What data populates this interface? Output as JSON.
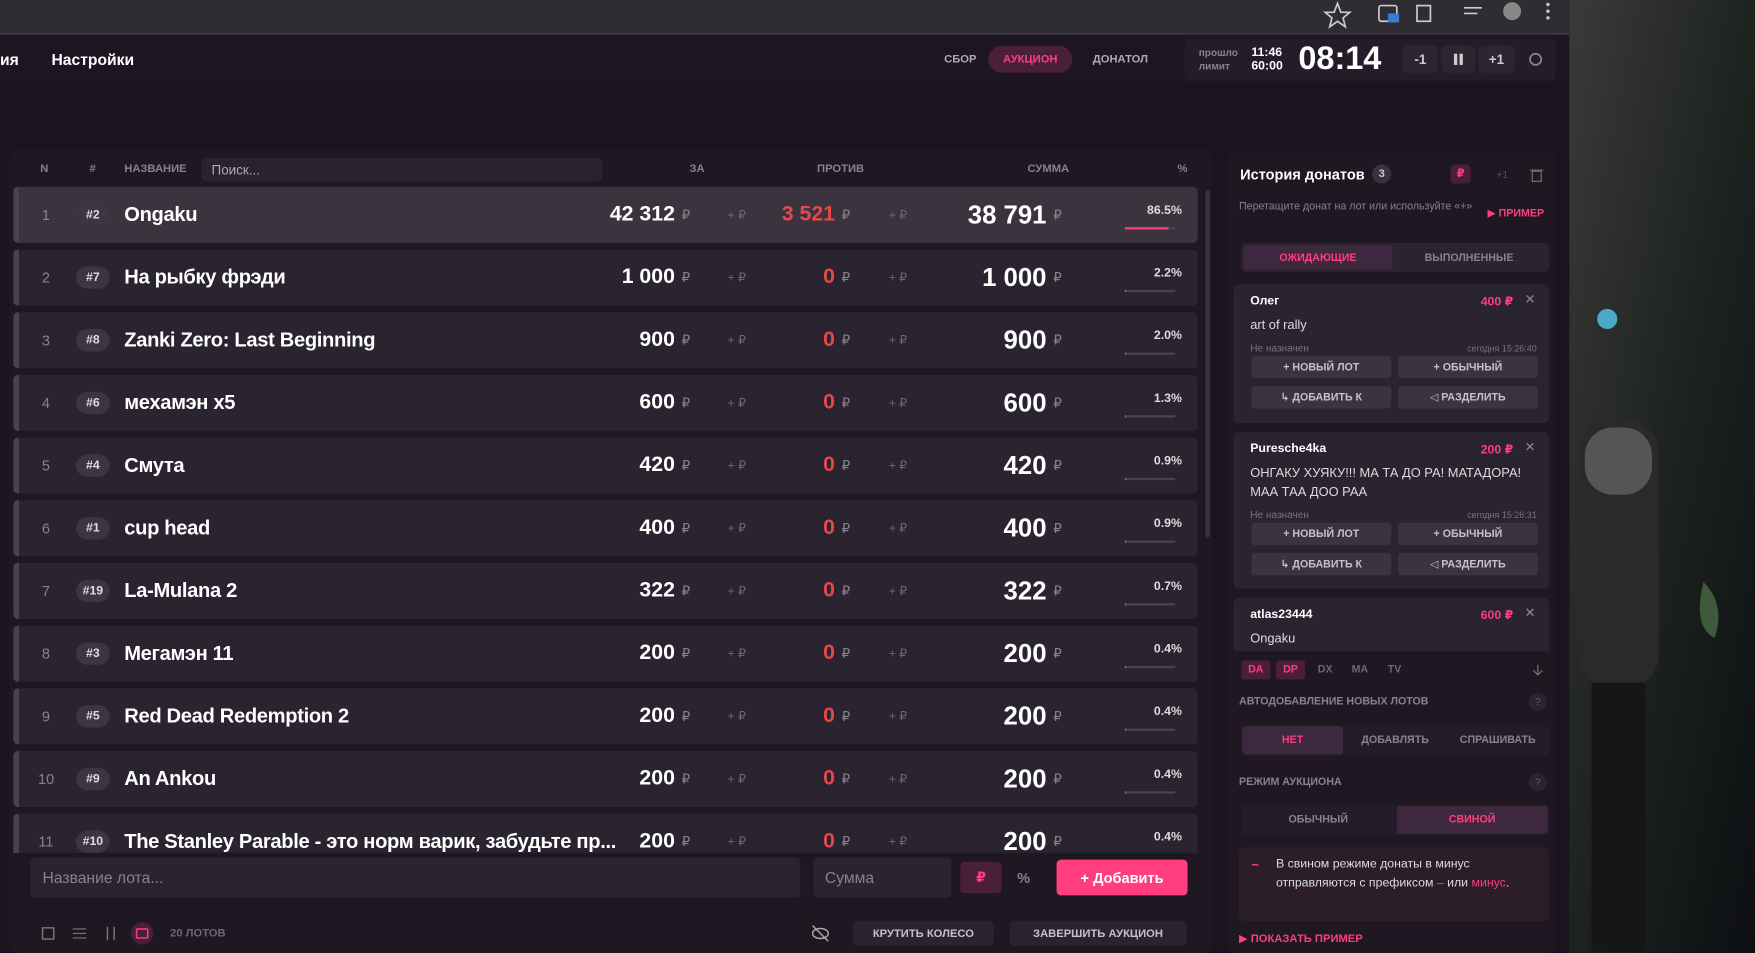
{
  "header": {
    "nav": [
      "ия",
      "Настройки"
    ],
    "tabs": [
      {
        "label": "СБОР"
      },
      {
        "label": "АУКЦИОН",
        "active": true
      },
      {
        "label": "ДОНАТОЛ"
      }
    ],
    "timer": {
      "elapsed_label": "прошло",
      "elapsed": "11:46",
      "limit_label": "лимит",
      "limit": "60:00",
      "remaining": "08:14",
      "minus": "-1",
      "plus": "+1"
    }
  },
  "table": {
    "columns": {
      "n": "N",
      "hash": "#",
      "name": "НАЗВАНИЕ",
      "search": "Поиск...",
      "za": "ЗА",
      "protiv": "ПРОТИВ",
      "sum": "СУММА",
      "pct": "%"
    },
    "currency": "₽",
    "add_currency": "+ ₽",
    "rows": [
      {
        "n": "1",
        "id": "#2",
        "name": "Ongaku",
        "za": "42 312",
        "protiv": "3 521",
        "sum": "38 791",
        "pct": "86.5%"
      },
      {
        "n": "2",
        "id": "#7",
        "name": "На рыбку фрэди",
        "za": "1 000",
        "protiv": "0",
        "sum": "1 000",
        "pct": "2.2%"
      },
      {
        "n": "3",
        "id": "#8",
        "name": "Zanki Zero: Last Beginning",
        "za": "900",
        "protiv": "0",
        "sum": "900",
        "pct": "2.0%"
      },
      {
        "n": "4",
        "id": "#6",
        "name": "мехамэн x5",
        "za": "600",
        "protiv": "0",
        "sum": "600",
        "pct": "1.3%"
      },
      {
        "n": "5",
        "id": "#4",
        "name": "Смута",
        "za": "420",
        "protiv": "0",
        "sum": "420",
        "pct": "0.9%"
      },
      {
        "n": "6",
        "id": "#1",
        "name": "cup head",
        "za": "400",
        "protiv": "0",
        "sum": "400",
        "pct": "0.9%"
      },
      {
        "n": "7",
        "id": "#19",
        "name": "La-Mulana 2",
        "za": "322",
        "protiv": "0",
        "sum": "322",
        "pct": "0.7%"
      },
      {
        "n": "8",
        "id": "#3",
        "name": "Мегамэн 11",
        "za": "200",
        "protiv": "0",
        "sum": "200",
        "pct": "0.4%"
      },
      {
        "n": "9",
        "id": "#5",
        "name": "Red Dead Redemption 2",
        "za": "200",
        "protiv": "0",
        "sum": "200",
        "pct": "0.4%"
      },
      {
        "n": "10",
        "id": "#9",
        "name": "An Ankou",
        "za": "200",
        "protiv": "0",
        "sum": "200",
        "pct": "0.4%"
      },
      {
        "n": "11",
        "id": "#10",
        "name": "The Stanley Parable - это норм варик, забудьте пр...",
        "za": "200",
        "protiv": "0",
        "sum": "200",
        "pct": "0.4%"
      }
    ],
    "add_form": {
      "name_placeholder": "Название лота...",
      "sum_placeholder": "Сумма",
      "percent": "%",
      "add": "+ Добавить"
    },
    "footer": {
      "count": "20 ЛОТОВ",
      "spin": "КРУТИТЬ КОЛЕСО",
      "finish": "ЗАВЕРШИТЬ АУКЦИОН"
    }
  },
  "donations": {
    "title": "История донатов",
    "count": "3",
    "badge_plus": "+1",
    "hint": "Перетащите донат на лот или используйте «+»",
    "example": "▶ ПРИМЕР",
    "tabs": [
      {
        "label": "ОЖИДАЮЩИЕ",
        "active": true
      },
      {
        "label": "ВЫПОЛНЕННЫЕ"
      }
    ],
    "actions": [
      "+ НОВЫЙ ЛОТ",
      "+ ОБЫЧНЫЙ",
      "↳ ДОБАВИТЬ К",
      "◁ РАЗДЕЛИТЬ"
    ],
    "items": [
      {
        "name": "Олег",
        "amount": "400 ₽",
        "message": "art of rally",
        "status": "Не назначен",
        "time": "сегодня 15:26:40"
      },
      {
        "name": "Puresche4ka",
        "amount": "200 ₽",
        "message": "ОНГАКУ ХУЯКУ!!! МА ТА ДО РА! МАТАДОРА! МАА ТАА ДОО РАА",
        "status": "Не назначен",
        "time": "сегодня 15:26:31"
      },
      {
        "name": "atlas23444",
        "amount": "600 ₽",
        "message": "Ongaku"
      }
    ],
    "sources": [
      {
        "label": "DA",
        "active": true
      },
      {
        "label": "DP",
        "active": true
      },
      {
        "label": "DX"
      },
      {
        "label": "MA"
      },
      {
        "label": "TV"
      }
    ],
    "auto_add": {
      "label": "АВТОДОБАВЛЕНИЕ НОВЫХ ЛОТОВ",
      "help": "?",
      "options": [
        {
          "label": "НЕТ",
          "active": true
        },
        {
          "label": "ДОБАВЛЯТЬ"
        },
        {
          "label": "СПРАШИВАТЬ"
        }
      ]
    },
    "mode": {
      "label": "РЕЖИМ АУКЦИОНА",
      "help": "?",
      "options": [
        {
          "label": "ОБЫЧНЫЙ"
        },
        {
          "label": "СВИНОЙ",
          "active": true
        }
      ]
    },
    "note": {
      "marker": "–",
      "parts": [
        {
          "text": "В свином режиме донаты в минус отправляются с префиксом "
        },
        {
          "text": "–",
          "accent": true
        },
        {
          "text": " или "
        },
        {
          "text": "минус",
          "accent": true
        },
        {
          "text": "."
        }
      ]
    },
    "show_example": "▶ ПОКАЗАТЬ ПРИМЕР"
  }
}
